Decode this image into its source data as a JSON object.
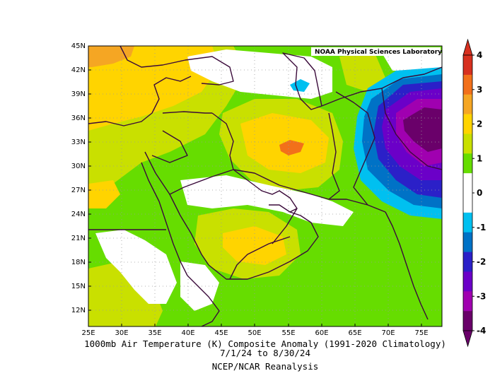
{
  "map": {
    "credit": "NOAA Physical Sciences Laboratory",
    "lon_ticks": [
      "25E",
      "30E",
      "35E",
      "40E",
      "45E",
      "50E",
      "55E",
      "60E",
      "65E",
      "70E",
      "75E"
    ],
    "lat_ticks": [
      "12N",
      "15N",
      "18N",
      "21N",
      "24N",
      "27N",
      "30N",
      "33N",
      "36N",
      "39N",
      "42N",
      "45N"
    ],
    "caption_line1": "1000mb Air Temperature (K) Composite Anomaly (1991-2020 Climatology)",
    "caption_line2": "7/1/24  to 8/30/24",
    "caption_line3": "NCEP/NCAR Reanalysis",
    "lon_range": [
      25,
      78
    ],
    "lat_range": [
      10,
      45
    ]
  },
  "colorbar": {
    "labels": [
      "4",
      "3",
      "2",
      "1",
      "0",
      "-1",
      "-2",
      "-3",
      "-4"
    ],
    "colors": [
      "#d7301f",
      "#f2701a",
      "#f5a623",
      "#ffd400",
      "#c9e000",
      "#66dd00",
      "#ffffff",
      "#ffffff",
      "#00c0f0",
      "#0072c6",
      "#2b20c8",
      "#6b00c8",
      "#a000b0",
      "#6a006a"
    ]
  }
}
